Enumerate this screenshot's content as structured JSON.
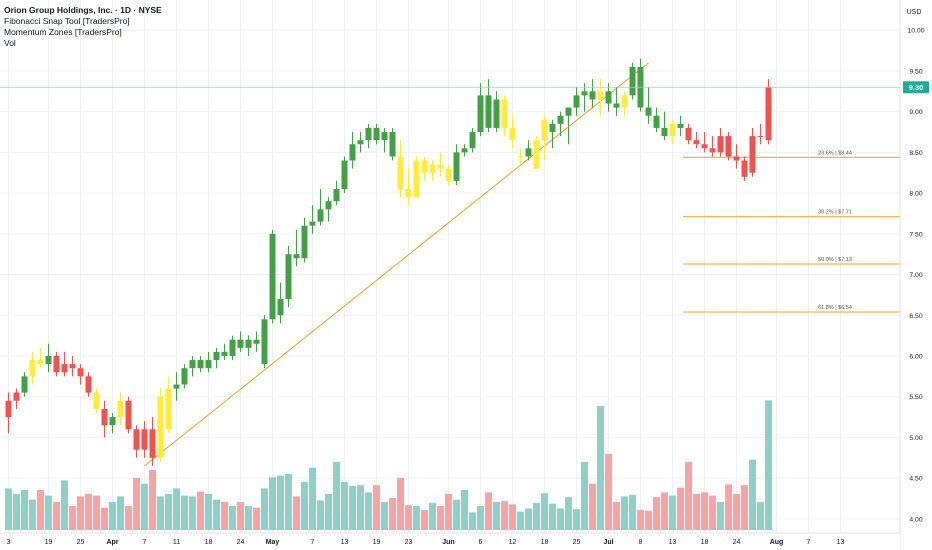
{
  "header": {
    "title": "Orion Group Holdings, Inc. · 1D · NYSE",
    "indicators": [
      "Fibonacci Snap Tool [TradersPro]",
      "Momentum Zones [TradersPro]",
      "Vol"
    ]
  },
  "price_axis": {
    "currency": "USD",
    "current_price": "9.30",
    "current_color": "#22ab94"
  },
  "colors": {
    "up": "#43a047",
    "down": "#ef5350",
    "neutral": "#ffeb3b",
    "vol_up": "#8ed0c7",
    "vol_down": "#f5a3a3",
    "fib": "#f59d1a",
    "grid": "#eef0f3"
  },
  "chart_data": {
    "type": "candlestick",
    "title": "Orion Group Holdings, Inc. · 1D · NYSE",
    "ylim": [
      3.9,
      10.15
    ],
    "y_ticks": [
      "10.00",
      "9.50",
      "9.00",
      "8.50",
      "8.00",
      "7.50",
      "7.00",
      "6.50",
      "6.00",
      "5.50",
      "5.00",
      "4.50",
      "4.00"
    ],
    "y_tick_values": [
      10.0,
      9.5,
      9.0,
      8.5,
      8.0,
      7.5,
      7.0,
      6.5,
      6.0,
      5.5,
      5.0,
      4.5,
      4.0
    ],
    "x_tick_labels": [
      "3",
      "19",
      "25",
      "Apr",
      "7",
      "11",
      "18",
      "24",
      "May",
      "7",
      "13",
      "19",
      "23",
      "Jun",
      "6",
      "12",
      "18",
      "25",
      "Jul",
      "8",
      "13",
      "18",
      "24",
      "Aug",
      "7",
      "13"
    ],
    "x_tick_bar_index": [
      0,
      5,
      9,
      13,
      17,
      21,
      25,
      29,
      33,
      38,
      42,
      46,
      50,
      55,
      59,
      63,
      67,
      71,
      75,
      79,
      83,
      87,
      91,
      96,
      100,
      104
    ],
    "bold_ticks": [
      "Apr",
      "May",
      "Jun",
      "Jul",
      "Aug"
    ],
    "candles": [
      {
        "o": 5.25,
        "h": 5.55,
        "l": 5.05,
        "c": 5.45,
        "v": 0.52
      },
      {
        "o": 5.45,
        "h": 5.6,
        "l": 5.35,
        "c": 5.55,
        "v": 0.45
      },
      {
        "o": 5.55,
        "h": 5.8,
        "l": 5.5,
        "c": 5.75,
        "v": 0.5
      },
      {
        "o": 5.75,
        "h": 6.05,
        "l": 5.65,
        "c": 5.95,
        "v": 0.38
      },
      {
        "o": 5.95,
        "h": 6.1,
        "l": 5.85,
        "c": 5.9,
        "v": 0.5
      },
      {
        "o": 5.9,
        "h": 6.15,
        "l": 5.8,
        "c": 6.0,
        "v": 0.43
      },
      {
        "o": 6.0,
        "h": 6.05,
        "l": 5.75,
        "c": 5.8,
        "v": 0.35
      },
      {
        "o": 5.8,
        "h": 6.05,
        "l": 5.75,
        "c": 5.9,
        "v": 0.62
      },
      {
        "o": 5.9,
        "h": 6.0,
        "l": 5.75,
        "c": 5.85,
        "v": 0.3
      },
      {
        "o": 5.85,
        "h": 5.9,
        "l": 5.65,
        "c": 5.75,
        "v": 0.42
      },
      {
        "o": 5.75,
        "h": 5.8,
        "l": 5.5,
        "c": 5.55,
        "v": 0.45
      },
      {
        "o": 5.55,
        "h": 5.6,
        "l": 5.3,
        "c": 5.35,
        "v": 0.43
      },
      {
        "o": 5.35,
        "h": 5.45,
        "l": 5.0,
        "c": 5.15,
        "v": 0.28
      },
      {
        "o": 5.15,
        "h": 5.3,
        "l": 5.05,
        "c": 5.25,
        "v": 0.35
      },
      {
        "o": 5.25,
        "h": 5.55,
        "l": 5.15,
        "c": 5.45,
        "v": 0.42
      },
      {
        "o": 5.45,
        "h": 5.5,
        "l": 5.05,
        "c": 5.1,
        "v": 0.3
      },
      {
        "o": 5.1,
        "h": 5.15,
        "l": 4.75,
        "c": 4.85,
        "v": 0.65
      },
      {
        "o": 4.85,
        "h": 5.2,
        "l": 4.75,
        "c": 5.1,
        "v": 0.58
      },
      {
        "o": 5.1,
        "h": 5.25,
        "l": 4.65,
        "c": 4.75,
        "v": 0.75
      },
      {
        "o": 4.75,
        "h": 5.6,
        "l": 4.7,
        "c": 5.5,
        "v": 0.42
      },
      {
        "o": 5.1,
        "h": 5.75,
        "l": 5.05,
        "c": 5.6,
        "v": 0.45
      },
      {
        "o": 5.6,
        "h": 5.8,
        "l": 5.45,
        "c": 5.65,
        "v": 0.52
      },
      {
        "o": 5.65,
        "h": 5.9,
        "l": 5.6,
        "c": 5.85,
        "v": 0.43
      },
      {
        "o": 5.85,
        "h": 6.0,
        "l": 5.75,
        "c": 5.95,
        "v": 0.42
      },
      {
        "o": 5.95,
        "h": 6.0,
        "l": 5.8,
        "c": 5.85,
        "v": 0.48
      },
      {
        "o": 5.85,
        "h": 6.05,
        "l": 5.8,
        "c": 5.95,
        "v": 0.45
      },
      {
        "o": 5.95,
        "h": 6.1,
        "l": 5.85,
        "c": 6.05,
        "v": 0.38
      },
      {
        "o": 6.05,
        "h": 6.15,
        "l": 5.95,
        "c": 6.0,
        "v": 0.35
      },
      {
        "o": 6.0,
        "h": 6.25,
        "l": 5.95,
        "c": 6.2,
        "v": 0.3
      },
      {
        "o": 6.2,
        "h": 6.3,
        "l": 6.05,
        "c": 6.1,
        "v": 0.35
      },
      {
        "o": 6.1,
        "h": 6.25,
        "l": 6.0,
        "c": 6.2,
        "v": 0.3
      },
      {
        "o": 6.2,
        "h": 6.3,
        "l": 6.05,
        "c": 6.15,
        "v": 0.28
      },
      {
        "o": 5.9,
        "h": 6.5,
        "l": 5.85,
        "c": 6.45,
        "v": 0.52
      },
      {
        "o": 6.45,
        "h": 7.55,
        "l": 6.4,
        "c": 7.5,
        "v": 0.66
      },
      {
        "o": 6.5,
        "h": 6.9,
        "l": 6.4,
        "c": 6.7,
        "v": 0.68
      },
      {
        "o": 6.7,
        "h": 7.35,
        "l": 6.6,
        "c": 7.25,
        "v": 0.7
      },
      {
        "o": 7.25,
        "h": 7.55,
        "l": 7.1,
        "c": 7.2,
        "v": 0.42
      },
      {
        "o": 7.2,
        "h": 7.7,
        "l": 7.15,
        "c": 7.6,
        "v": 0.6
      },
      {
        "o": 7.6,
        "h": 7.85,
        "l": 7.5,
        "c": 7.65,
        "v": 0.78
      },
      {
        "o": 7.65,
        "h": 8.05,
        "l": 7.6,
        "c": 7.8,
        "v": 0.37
      },
      {
        "o": 7.8,
        "h": 7.95,
        "l": 7.65,
        "c": 7.9,
        "v": 0.45
      },
      {
        "o": 7.9,
        "h": 8.15,
        "l": 7.85,
        "c": 8.05,
        "v": 0.85
      },
      {
        "o": 8.05,
        "h": 8.45,
        "l": 8.0,
        "c": 8.4,
        "v": 0.6
      },
      {
        "o": 8.4,
        "h": 8.75,
        "l": 8.3,
        "c": 8.6,
        "v": 0.55
      },
      {
        "o": 8.6,
        "h": 8.75,
        "l": 8.5,
        "c": 8.65,
        "v": 0.56
      },
      {
        "o": 8.65,
        "h": 8.85,
        "l": 8.55,
        "c": 8.8,
        "v": 0.47
      },
      {
        "o": 8.8,
        "h": 8.85,
        "l": 8.6,
        "c": 8.65,
        "v": 0.56
      },
      {
        "o": 8.65,
        "h": 8.8,
        "l": 8.5,
        "c": 8.75,
        "v": 0.35
      },
      {
        "o": 8.75,
        "h": 8.8,
        "l": 8.4,
        "c": 8.45,
        "v": 0.4
      },
      {
        "o": 8.45,
        "h": 8.65,
        "l": 7.95,
        "c": 8.05,
        "v": 0.65
      },
      {
        "o": 8.05,
        "h": 8.3,
        "l": 7.85,
        "c": 7.95,
        "v": 0.31
      },
      {
        "o": 7.95,
        "h": 8.45,
        "l": 7.95,
        "c": 8.4,
        "v": 0.3
      },
      {
        "o": 8.4,
        "h": 8.45,
        "l": 8.15,
        "c": 8.25,
        "v": 0.25
      },
      {
        "o": 8.25,
        "h": 8.4,
        "l": 8.15,
        "c": 8.35,
        "v": 0.34
      },
      {
        "o": 8.35,
        "h": 8.5,
        "l": 8.2,
        "c": 8.3,
        "v": 0.3
      },
      {
        "o": 8.3,
        "h": 8.35,
        "l": 8.1,
        "c": 8.15,
        "v": 0.45
      },
      {
        "o": 8.15,
        "h": 8.6,
        "l": 8.1,
        "c": 8.5,
        "v": 0.38
      },
      {
        "o": 8.5,
        "h": 8.6,
        "l": 8.45,
        "c": 8.55,
        "v": 0.5
      },
      {
        "o": 8.55,
        "h": 8.8,
        "l": 8.5,
        "c": 8.75,
        "v": 0.22
      },
      {
        "o": 8.75,
        "h": 9.35,
        "l": 8.7,
        "c": 9.2,
        "v": 0.3
      },
      {
        "o": 9.2,
        "h": 9.4,
        "l": 8.75,
        "c": 8.8,
        "v": 0.47
      },
      {
        "o": 8.8,
        "h": 9.25,
        "l": 8.75,
        "c": 9.15,
        "v": 0.35
      },
      {
        "o": 9.15,
        "h": 9.2,
        "l": 8.7,
        "c": 8.8,
        "v": 0.36
      },
      {
        "o": 8.8,
        "h": 8.95,
        "l": 8.55,
        "c": 8.65,
        "v": 0.32
      },
      {
        "o": 8.45,
        "h": 8.55,
        "l": 8.35,
        "c": 8.45,
        "v": 0.23
      },
      {
        "o": 8.45,
        "h": 8.65,
        "l": 8.4,
        "c": 8.55,
        "v": 0.27
      },
      {
        "o": 8.3,
        "h": 8.7,
        "l": 8.3,
        "c": 8.65,
        "v": 0.34
      },
      {
        "o": 8.65,
        "h": 8.95,
        "l": 8.4,
        "c": 8.9,
        "v": 0.46
      },
      {
        "o": 8.75,
        "h": 8.9,
        "l": 8.55,
        "c": 8.85,
        "v": 0.33
      },
      {
        "o": 8.85,
        "h": 9.0,
        "l": 8.7,
        "c": 8.95,
        "v": 0.27
      },
      {
        "o": 8.95,
        "h": 9.05,
        "l": 8.6,
        "c": 9.05,
        "v": 0.41
      },
      {
        "o": 9.05,
        "h": 9.3,
        "l": 8.95,
        "c": 9.2,
        "v": 0.26
      },
      {
        "o": 9.2,
        "h": 9.35,
        "l": 9.0,
        "c": 9.25,
        "v": 0.85
      },
      {
        "o": 9.25,
        "h": 9.4,
        "l": 9.05,
        "c": 9.15,
        "v": 0.58
      },
      {
        "o": 9.15,
        "h": 9.4,
        "l": 8.95,
        "c": 9.25,
        "v": 1.55
      },
      {
        "o": 9.25,
        "h": 9.35,
        "l": 9.0,
        "c": 9.1,
        "v": 0.95
      },
      {
        "o": 9.1,
        "h": 9.3,
        "l": 8.95,
        "c": 9.05,
        "v": 0.35
      },
      {
        "o": 9.05,
        "h": 9.25,
        "l": 8.95,
        "c": 9.2,
        "v": 0.42
      },
      {
        "o": 9.2,
        "h": 9.6,
        "l": 9.15,
        "c": 9.55,
        "v": 0.44
      },
      {
        "o": 9.55,
        "h": 9.65,
        "l": 9.0,
        "c": 9.05,
        "v": 0.25
      },
      {
        "o": 9.05,
        "h": 9.3,
        "l": 8.85,
        "c": 8.95,
        "v": 0.24
      },
      {
        "o": 8.95,
        "h": 9.05,
        "l": 8.75,
        "c": 8.8,
        "v": 0.41
      },
      {
        "o": 8.8,
        "h": 9.0,
        "l": 8.65,
        "c": 8.7,
        "v": 0.47
      },
      {
        "o": 8.7,
        "h": 8.9,
        "l": 8.6,
        "c": 8.85,
        "v": 0.43
      },
      {
        "o": 8.85,
        "h": 8.95,
        "l": 8.7,
        "c": 8.8,
        "v": 0.53
      },
      {
        "o": 8.8,
        "h": 8.85,
        "l": 8.6,
        "c": 8.65,
        "v": 0.85
      },
      {
        "o": 8.65,
        "h": 8.75,
        "l": 8.55,
        "c": 8.6,
        "v": 0.45
      },
      {
        "o": 8.6,
        "h": 8.75,
        "l": 8.5,
        "c": 8.55,
        "v": 0.47
      },
      {
        "o": 8.55,
        "h": 8.7,
        "l": 8.45,
        "c": 8.5,
        "v": 0.43
      },
      {
        "o": 8.5,
        "h": 8.8,
        "l": 8.45,
        "c": 8.7,
        "v": 0.35
      },
      {
        "o": 8.7,
        "h": 8.75,
        "l": 8.4,
        "c": 8.45,
        "v": 0.57
      },
      {
        "o": 8.45,
        "h": 8.6,
        "l": 8.3,
        "c": 8.4,
        "v": 0.45
      },
      {
        "o": 8.4,
        "h": 8.45,
        "l": 8.15,
        "c": 8.2,
        "v": 0.56
      },
      {
        "o": 8.25,
        "h": 8.8,
        "l": 8.2,
        "c": 8.7,
        "v": 0.88
      },
      {
        "o": 8.7,
        "h": 8.85,
        "l": 8.6,
        "c": 8.7,
        "v": 0.35
      },
      {
        "o": 8.65,
        "h": 9.4,
        "l": 8.6,
        "c": 9.3,
        "v": 1.62
      }
    ],
    "candle_colors": [
      "down",
      "down",
      "up",
      "neutral",
      "neutral",
      "up",
      "down",
      "down",
      "down",
      "down",
      "down",
      "neutral",
      "down",
      "up",
      "neutral",
      "down",
      "down",
      "down",
      "down",
      "neutral",
      "neutral",
      "up",
      "up",
      "up",
      "up",
      "up",
      "up",
      "up",
      "up",
      "up",
      "up",
      "up",
      "up",
      "up",
      "up",
      "up",
      "up",
      "up",
      "up",
      "up",
      "up",
      "up",
      "up",
      "up",
      "up",
      "up",
      "up",
      "up",
      "up",
      "neutral",
      "neutral",
      "neutral",
      "neutral",
      "neutral",
      "neutral",
      "neutral",
      "up",
      "up",
      "up",
      "up",
      "up",
      "up",
      "neutral",
      "neutral",
      "neutral",
      "up",
      "neutral",
      "neutral",
      "up",
      "up",
      "up",
      "up",
      "up",
      "up",
      "neutral",
      "up",
      "up",
      "neutral",
      "up",
      "up",
      "up",
      "up",
      "up",
      "neutral",
      "up",
      "down",
      "down",
      "down",
      "down",
      "down",
      "down",
      "down",
      "down",
      "down",
      "down",
      "down",
      "neutral",
      "neutral",
      "up"
    ],
    "fibonacci": {
      "levels": [
        {
          "label": "23.6% | $8.44",
          "price": 8.44
        },
        {
          "label": "38.2% | $7.71",
          "price": 7.71
        },
        {
          "label": "50.0% | $7.13",
          "price": 7.13
        },
        {
          "label": "61.8% | $6.54",
          "price": 6.54
        }
      ],
      "swing": {
        "from_bar": 17,
        "from_price": 4.65,
        "to_bar": 80,
        "to_price": 9.6
      }
    },
    "last_price": 9.3,
    "volume": {
      "max_scale": 2.0
    }
  }
}
